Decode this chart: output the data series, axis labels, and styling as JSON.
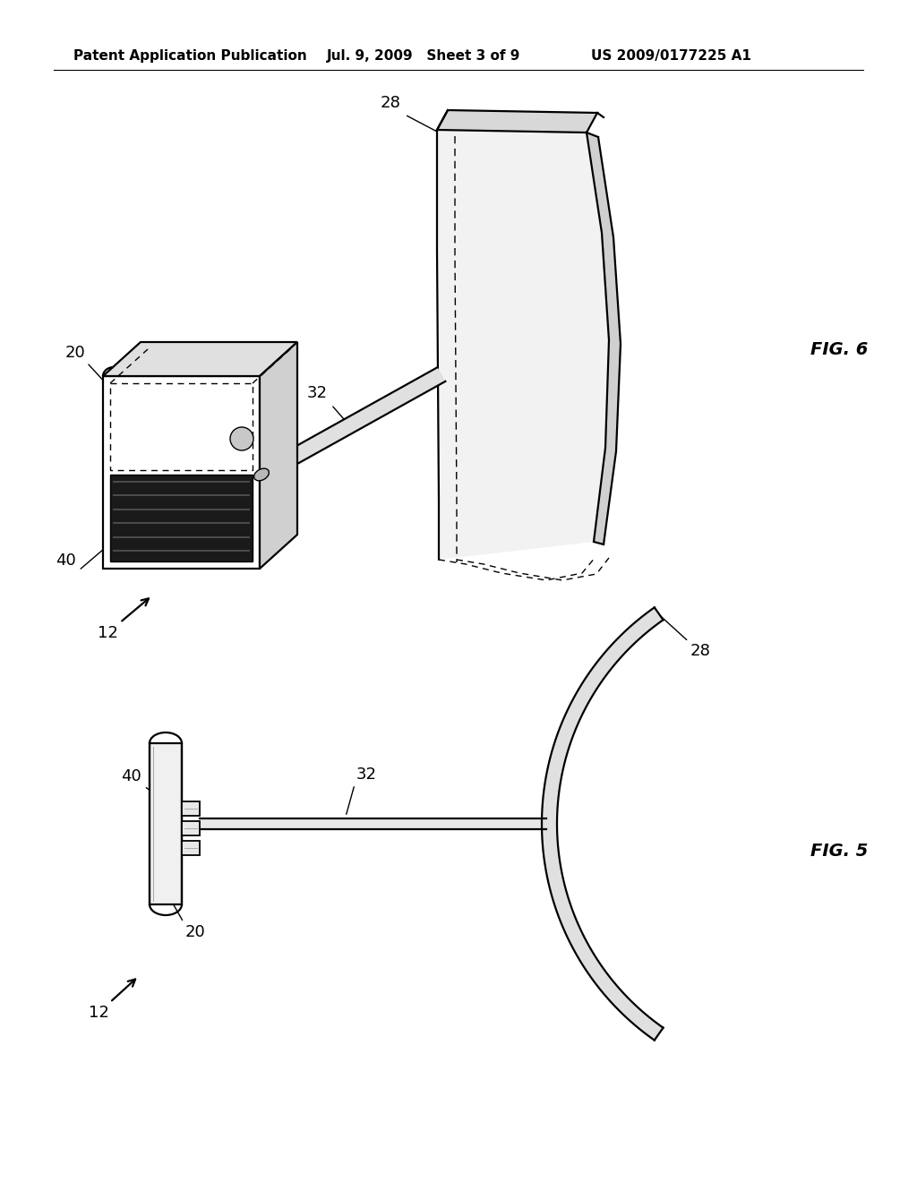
{
  "header_left": "Patent Application Publication",
  "header_mid": "Jul. 9, 2009   Sheet 3 of 9",
  "header_right": "US 2009/0177225 A1",
  "fig6_label": "FIG. 6",
  "fig5_label": "FIG. 5",
  "background_color": "#ffffff",
  "line_color": "#000000",
  "gray_light": "#e8e8e8",
  "gray_mid": "#cccccc",
  "gray_dark": "#999999",
  "header_fontsize": 11,
  "label_fontsize": 13
}
